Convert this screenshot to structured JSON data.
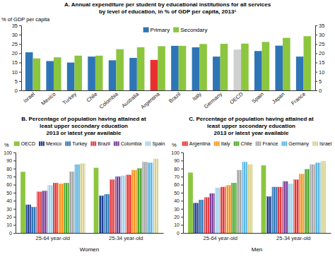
{
  "chart_data": [
    {
      "type": "bar",
      "title": [
        "A. Annual expenditure per student by educational institutions for all services",
        "by level of education, in  % of GDP per capita, 2013¹"
      ],
      "ylabel": "% of GDP per capita",
      "categories": [
        "Israel",
        "Mexico",
        "Turkey",
        "Chile",
        "Colombia",
        "Australia",
        "Argentina",
        "Brazil",
        "Italy",
        "Germany",
        "OECD",
        "Spain",
        "Japan",
        "France"
      ],
      "series": [
        {
          "name": "Primary",
          "color": "#2e75b6",
          "colors": [
            "#2e75b6",
            "#2e75b6",
            "#2e75b6",
            "#2e75b6",
            "#2e75b6",
            "#2e75b6",
            "#e8312f",
            "#2e75b6",
            "#2e75b6",
            "#2e75b6",
            "#d0d0d0",
            "#2e75b6",
            "#2e75b6",
            "#2e75b6"
          ],
          "values": [
            20.5,
            15.8,
            15,
            18.2,
            16.2,
            17.5,
            16.4,
            24,
            23.2,
            18.2,
            22,
            21.2,
            24.1,
            18.2
          ]
        },
        {
          "name": "Secondary",
          "color": "#8cc63f",
          "values": [
            17.2,
            17.8,
            18.7,
            18.7,
            22.2,
            23.2,
            23.8,
            24,
            25,
            25.1,
            25.2,
            26.1,
            28.3,
            29.2
          ]
        }
      ],
      "ylim": [
        0,
        35
      ],
      "yticks": [
        0,
        5,
        10,
        15,
        20,
        25,
        30,
        35
      ],
      "legend": "top"
    },
    {
      "type": "bar",
      "title": [
        "B. Percentage of population having attained at",
        "least upper secondary education",
        "2013 or latest year available"
      ],
      "ylabel": "%",
      "xlabel": "Women",
      "categories": [
        "25-64 year-old",
        "25-34 year-old"
      ],
      "series": [
        {
          "name": "OECD",
          "color": "#8cc63f",
          "values": [
            76,
            81
          ]
        },
        {
          "name": "Mexico",
          "color": "#1f3f8f",
          "values": [
            35,
            46
          ]
        },
        {
          "name": "Turkey",
          "color": "#2e75b6",
          "values": [
            32,
            48
          ]
        },
        {
          "name": "Brazil",
          "color": "#e03a3e",
          "values": [
            51,
            66
          ]
        },
        {
          "name": "Colombia",
          "color": "#7b3f98",
          "values": [
            52,
            70
          ]
        },
        {
          "name": "Spain",
          "color": "#9ed3ec",
          "values": [
            59,
            71
          ]
        },
        {
          "color": "#e8312f",
          "values": [
            62,
            72
          ]
        },
        {
          "color": "#f7941d",
          "values": [
            61,
            78
          ]
        },
        {
          "color": "#4ea72e",
          "values": [
            62,
            80
          ]
        },
        {
          "color": "#a6a6a6",
          "values": [
            76,
            88
          ]
        },
        {
          "color": "#5bb6e6",
          "values": [
            85,
            87
          ]
        },
        {
          "color": "#d6d28e",
          "values": [
            86,
            92
          ]
        }
      ],
      "ylim": [
        0,
        100
      ],
      "yticks": [
        0,
        10,
        20,
        30,
        40,
        50,
        60,
        70,
        80,
        90,
        100
      ],
      "legend": "top"
    },
    {
      "type": "bar",
      "title": [
        "C. Percentage of population having attained at",
        "least upper secondary education",
        "2013 or latest year available"
      ],
      "ylabel": "%",
      "xlabel": "Men",
      "categories": [
        "25-64 year-old",
        "25-34 year-old"
      ],
      "series": [
        {
          "color": "#8cc63f",
          "values": [
            75,
            84
          ]
        },
        {
          "color": "#1f3f8f",
          "values": [
            37,
            45
          ]
        },
        {
          "color": "#2e75b6",
          "values": [
            41,
            57
          ]
        },
        {
          "color": "#e03a3e",
          "values": [
            44,
            57
          ]
        },
        {
          "color": "#7b3f98",
          "values": [
            49,
            64
          ]
        },
        {
          "color": "#9ed3ec",
          "values": [
            56,
            61
          ]
        },
        {
          "name": "Argentina",
          "color": "#e8312f",
          "values": [
            57,
            66
          ]
        },
        {
          "name": "Italy",
          "color": "#f7941d",
          "values": [
            59,
            73
          ]
        },
        {
          "name": "Chile",
          "color": "#4ea72e",
          "values": [
            62,
            79
          ]
        },
        {
          "name": "France",
          "color": "#a6a6a6",
          "values": [
            78,
            85
          ]
        },
        {
          "name": "Germany",
          "color": "#5bb6e6",
          "values": [
            88,
            87
          ]
        },
        {
          "name": "Israel",
          "color": "#d6d28e",
          "values": [
            85,
            89
          ]
        }
      ],
      "ylim": [
        0,
        100
      ],
      "yticks": [
        0,
        10,
        20,
        30,
        40,
        50,
        60,
        70,
        80,
        90,
        100
      ],
      "legend": "top"
    }
  ]
}
